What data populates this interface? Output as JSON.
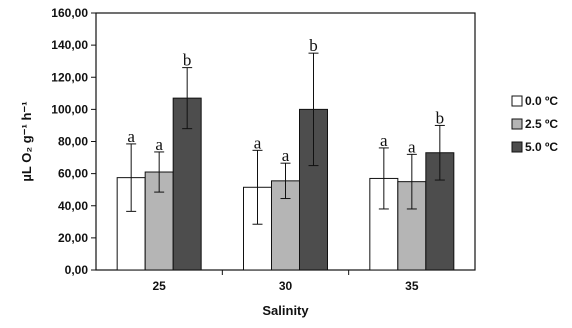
{
  "chart_data": {
    "type": "bar",
    "title": "",
    "xlabel": "Salinity",
    "ylabel": "µL O₂ g⁻¹ h⁻¹",
    "categories": [
      "25",
      "30",
      "35"
    ],
    "ylim": [
      0,
      160
    ],
    "yticks": [
      0,
      20,
      40,
      60,
      80,
      100,
      120,
      140,
      160
    ],
    "ytick_labels": [
      "0,00",
      "20,00",
      "40,00",
      "60,00",
      "80,00",
      "100,00",
      "120,00",
      "140,00",
      "160,00"
    ],
    "grid": false,
    "legend_position": "right",
    "series": [
      {
        "name": "0.0 ºC",
        "color": "#ffffff",
        "values": [
          57.5,
          51.5,
          57
        ],
        "error": [
          21,
          23,
          19
        ],
        "letters": [
          "a",
          "a",
          "a"
        ]
      },
      {
        "name": "2.5 ºC",
        "color": "#b5b5b5",
        "values": [
          61,
          55.5,
          55
        ],
        "error": [
          12.5,
          11,
          17
        ],
        "letters": [
          "a",
          "a",
          "a"
        ]
      },
      {
        "name": "5.0 ºC",
        "color": "#4d4d4d",
        "values": [
          107,
          100,
          73
        ],
        "error": [
          19,
          35,
          17
        ],
        "letters": [
          "b",
          "b",
          "b"
        ]
      }
    ]
  }
}
